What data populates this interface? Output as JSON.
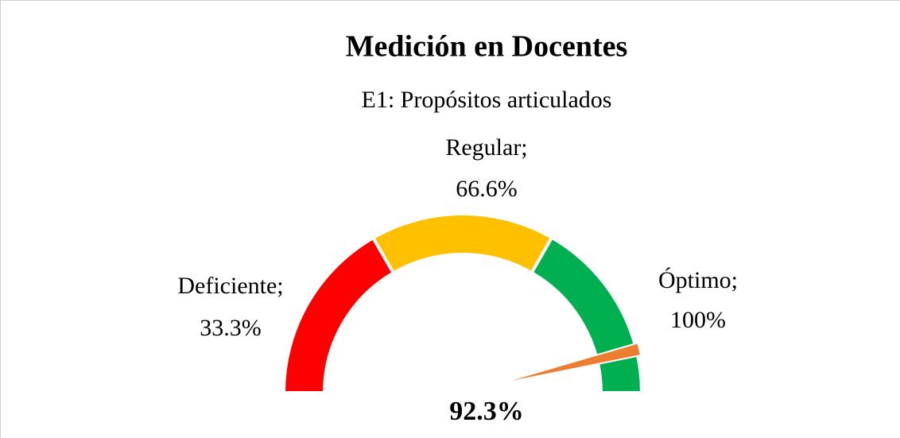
{
  "chart_data": {
    "type": "gauge",
    "title": "Medición en Docentes",
    "subtitle": "E1: Propósitos articulados",
    "categories": [
      "Deficiente;",
      "Regular;",
      "Óptimo;"
    ],
    "values": [
      33.3,
      66.6,
      100
    ],
    "value_labels": [
      "33.3%",
      "66.6%",
      "100%"
    ],
    "colors": [
      "#ff0000",
      "#ffc000",
      "#00b050"
    ],
    "ylim": [
      0,
      100
    ],
    "needle": {
      "value": 92.3,
      "label": "92.3%",
      "color": "#ed7d31"
    }
  }
}
